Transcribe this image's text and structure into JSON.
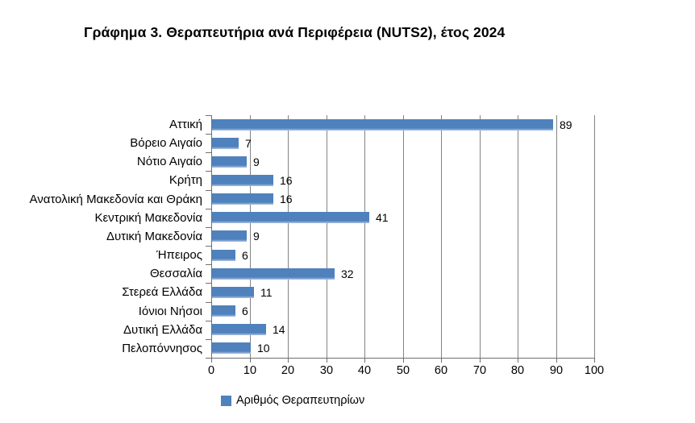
{
  "page": {
    "background": "#FFFFFF"
  },
  "chart_data": {
    "type": "bar",
    "orientation": "horizontal",
    "title": "Γράφημα 3. Θεραπευτήρια ανά Περιφέρεια (NUTS2), έτος 2024",
    "categories": [
      "Αττική",
      "Βόρειο Αιγαίο",
      "Νότιο Αιγαίο",
      "Κρήτη",
      "Ανατολική Μακεδονία και Θράκη",
      "Κεντρική Μακεδονία",
      "Δυτική Μακεδονία",
      "Ήπειρος",
      "Θεσσαλία",
      "Στερεά Ελλάδα",
      "Ιόνιοι Νήσοι",
      "Δυτική Ελλάδα",
      "Πελοπόννησος"
    ],
    "values": [
      89,
      7,
      9,
      16,
      16,
      41,
      9,
      6,
      32,
      11,
      6,
      14,
      10
    ],
    "xlabel": "",
    "ylabel": "",
    "xlim": [
      0,
      100
    ],
    "x_ticks": [
      0,
      10,
      20,
      30,
      40,
      50,
      60,
      70,
      80,
      90,
      100
    ],
    "grid": "vertical-on",
    "legend_position": "bottom",
    "legend": "Αριθμός Θεραπευτηρίων",
    "colors": {
      "bar": "#4F81BD",
      "bar_bottom_edge": "#AEC3E0",
      "gridline": "#848484",
      "axis": "#6F6F6F",
      "text": "#000000"
    }
  }
}
